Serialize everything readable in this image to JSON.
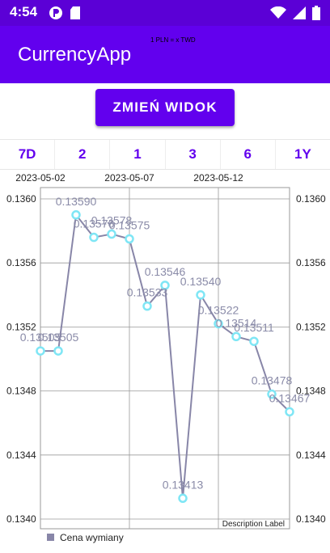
{
  "status_bar": {
    "time": "4:54",
    "icons": [
      "record-icon",
      "sd-card-icon",
      "wifi-icon",
      "signal-icon",
      "battery-icon"
    ]
  },
  "app_bar": {
    "title": "CurrencyApp",
    "subtitle": "1 PLN = x TWD"
  },
  "change_view_button": "ZMIEŃ WIDOK",
  "range_tabs": [
    "7D",
    "2",
    "1",
    "3",
    "6",
    "1Y"
  ],
  "chart_data": {
    "type": "line",
    "x_ticks": [
      "2023-05-02",
      "2023-05-07",
      "2023-05-12"
    ],
    "y_ticks": [
      "0.1360",
      "0.1356",
      "0.1352",
      "0.1348",
      "0.1344",
      "0.1340"
    ],
    "ylim": [
      0.134,
      0.136
    ],
    "values": [
      0.13505,
      0.13505,
      0.1359,
      0.13576,
      0.13578,
      0.13575,
      0.13533,
      0.13546,
      0.13413,
      0.1354,
      0.13522,
      0.13514,
      0.13511,
      0.13478,
      0.13467
    ],
    "point_labels": [
      "0.13505",
      "0.13505",
      "0.13590",
      "0.13576",
      "0.13578",
      "0.13575",
      "0.13533",
      "0.13546",
      "0.13413",
      "0.13540",
      "0.13522",
      "0.13514",
      "0.13511",
      "0.13478",
      "0.13467"
    ],
    "series_name": "Cena wymiany",
    "description": "Description Label",
    "line_color": "#8886a8",
    "marker_color": "#7fe6f5",
    "legend_position": "bottom-left",
    "grid": true
  }
}
